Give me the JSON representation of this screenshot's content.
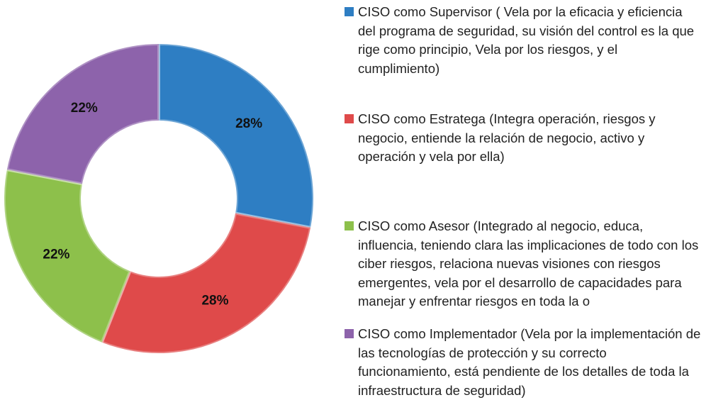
{
  "chart_data": {
    "type": "donut",
    "categories": [
      "CISO como Supervisor ( Vela por la eficacia y eficiencia del programa de seguridad, su visión del control es la que rige como principio, Vela por los riesgos, y el cumplimiento)",
      "CISO como Estratega (Integra operación, riesgos y negocio, entiende la relación de negocio, activo y operación y vela por ella)",
      "CISO como Asesor (Integrado al negocio, educa, influencia, teniendo clara las implicaciones de todo con los ciber riesgos, relaciona nuevas visiones con riesgos emergentes, vela por el desarrollo de capacidades para manejar y enfrentar riesgos en toda la o",
      "CISO como Implementador (Vela por la implementación de las tecnologías de protección y su correcto funcionamiento, está pendiente de los detalles de toda la infraestructura de seguridad)"
    ],
    "values": [
      28,
      28,
      22,
      22
    ],
    "value_labels": [
      "28%",
      "28%",
      "22%",
      "22%"
    ],
    "colors": [
      "#2e7ec3",
      "#df4a4a",
      "#8dc04b",
      "#8d63ab"
    ],
    "legend": "right"
  }
}
